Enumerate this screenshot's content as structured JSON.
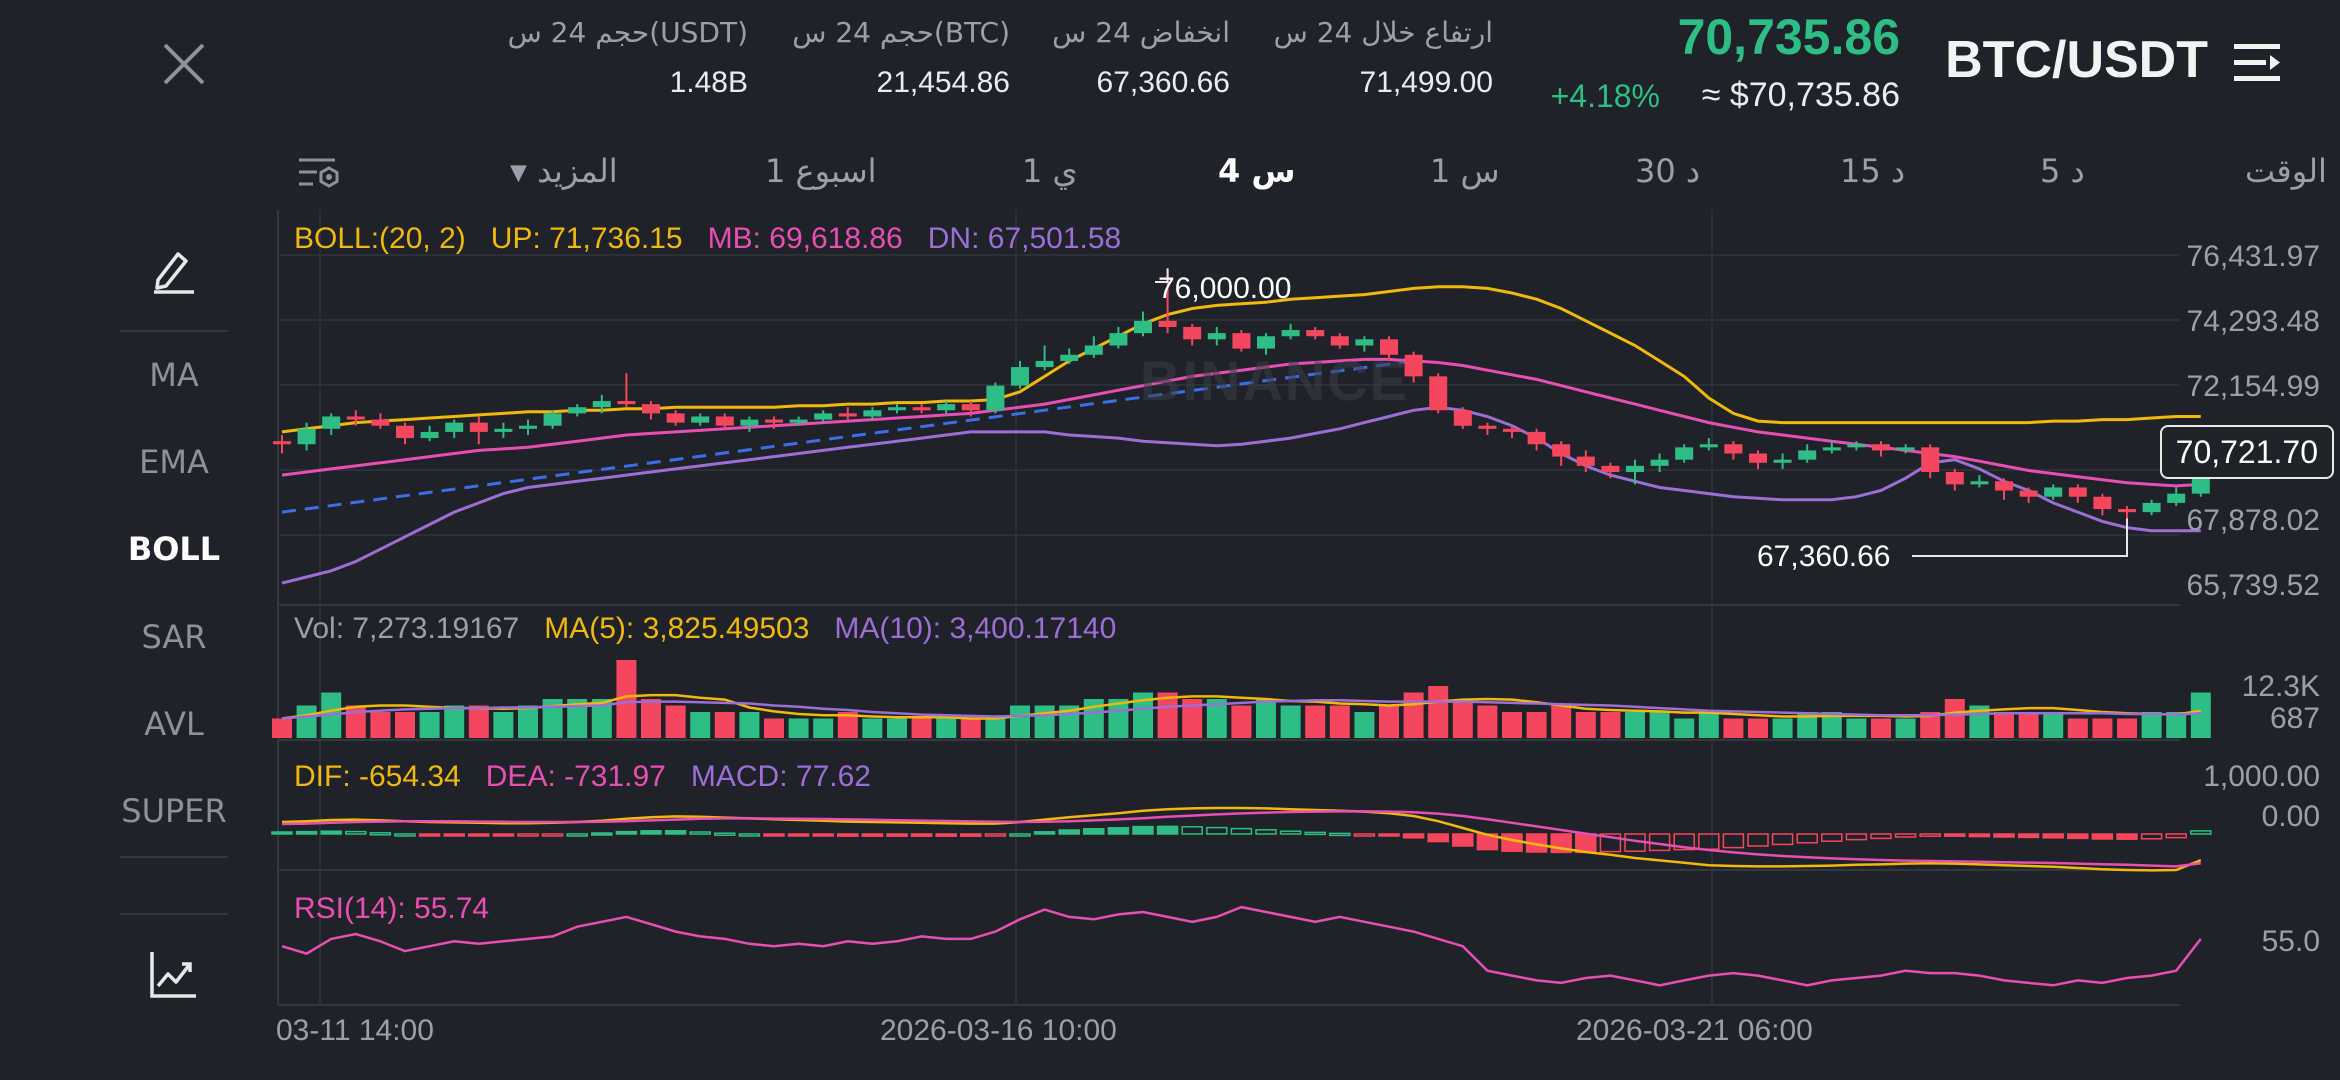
{
  "header": {
    "pair": "BTC/USDT",
    "last_price": "70,735.86",
    "usd_price": "≈ $70,735.86",
    "change_pct": "+4.18%",
    "stats": [
      {
        "label": "ارتفاع خلال 24 س",
        "value": "71,499.00"
      },
      {
        "label": "انخفاض 24 س",
        "value": "67,360.66"
      },
      {
        "label": "حجم 24 س(BTC)",
        "value": "21,454.86"
      },
      {
        "label": "حجم 24 س(USDT)",
        "value": "1.48B"
      }
    ]
  },
  "timeframes": {
    "label": "الوقت",
    "items": [
      "5 د",
      "15 د",
      "30 د",
      "1 س",
      "4 س",
      "1 ي",
      "1 اسبوع"
    ],
    "active": "4 س",
    "more": "المزيد"
  },
  "indicators": {
    "items": [
      "MA",
      "EMA",
      "BOLL",
      "SAR",
      "AVL",
      "SUPER"
    ],
    "active": "BOLL"
  },
  "icons": {
    "close": "close-icon",
    "menu": "menu-icon",
    "draw": "pencil-icon",
    "indicator_settings": "chart-settings-icon",
    "tf_settings": "layout-settings-icon"
  },
  "colors": {
    "up": "#2ebd85",
    "down": "#f6465d",
    "boll_up": "#f0b90b",
    "boll_mb": "#e84fb4",
    "boll_dn": "#9b6fd6",
    "trend": "#3b6fe8"
  },
  "watermark": "BINANCE",
  "chart_data": {
    "type": "candlestick",
    "legends": {
      "boll": {
        "name": "BOLL:(20, 2)",
        "up": "UP: 71,736.15",
        "mb": "MB: 69,618.86",
        "dn": "DN: 67,501.58"
      },
      "vol": {
        "vol": "Vol: 7,273.19167",
        "ma5": "MA(5): 3,825.49503",
        "ma10": "MA(10): 3,400.17140"
      },
      "macd": {
        "dif": "DIF: -654.34",
        "dea": "DEA: -731.97",
        "macd": "MACD: 77.62"
      },
      "rsi": {
        "rsi": "RSI(14): 55.74"
      }
    },
    "price_axis": [
      "76,431.97",
      "74,293.48",
      "72,154.99",
      "67,878.02",
      "65,739.52"
    ],
    "current_price": "70,721.70",
    "high_label": "76,000.00",
    "low_label": "67,360.66",
    "vol_axis": [
      "12.3K",
      "687"
    ],
    "macd_axis": [
      "1,000.00",
      "0.00"
    ],
    "rsi_axis": [
      "55.0"
    ],
    "dates": [
      "03-11 14:00",
      "2026-03-16 10:00",
      "2026-03-21 06:00"
    ],
    "price_range": [
      65739.52,
      76431.97
    ],
    "candles": [
      [
        70400,
        70300,
        70600,
        70000
      ],
      [
        70300,
        70800,
        71000,
        70100
      ],
      [
        70800,
        71200,
        71300,
        70600
      ],
      [
        71200,
        71100,
        71400,
        70900
      ],
      [
        71100,
        70900,
        71300,
        70800
      ],
      [
        70900,
        70500,
        71000,
        70300
      ],
      [
        70500,
        70700,
        70900,
        70400
      ],
      [
        70700,
        71000,
        71100,
        70500
      ],
      [
        71000,
        70700,
        71200,
        70300
      ],
      [
        70700,
        70800,
        71000,
        70500
      ],
      [
        70800,
        70900,
        71100,
        70600
      ],
      [
        70900,
        71300,
        71400,
        70800
      ],
      [
        71300,
        71500,
        71600,
        71200
      ],
      [
        71500,
        71700,
        71900,
        71300
      ],
      [
        71700,
        71600,
        72600,
        71500
      ],
      [
        71600,
        71300,
        71700,
        71100
      ],
      [
        71300,
        71000,
        71400,
        70900
      ],
      [
        71000,
        71200,
        71300,
        70900
      ],
      [
        71200,
        70900,
        71300,
        70800
      ],
      [
        70900,
        71100,
        71200,
        70700
      ],
      [
        71100,
        71000,
        71200,
        70800
      ],
      [
        71000,
        71100,
        71200,
        70900
      ],
      [
        71100,
        71300,
        71400,
        71000
      ],
      [
        71300,
        71200,
        71500,
        71100
      ],
      [
        71200,
        71400,
        71500,
        71100
      ],
      [
        71400,
        71500,
        71600,
        71300
      ],
      [
        71500,
        71400,
        71600,
        71300
      ],
      [
        71400,
        71600,
        71700,
        71300
      ],
      [
        71600,
        71400,
        71700,
        71200
      ],
      [
        71400,
        72200,
        72300,
        71300
      ],
      [
        72200,
        72800,
        73000,
        72100
      ],
      [
        72800,
        73000,
        73500,
        72700
      ],
      [
        73000,
        73200,
        73400,
        72900
      ],
      [
        73200,
        73500,
        73800,
        73100
      ],
      [
        73500,
        73900,
        74100,
        73400
      ],
      [
        73900,
        74300,
        74600,
        73800
      ],
      [
        74300,
        74100,
        76000,
        73900
      ],
      [
        74100,
        73700,
        74200,
        73500
      ],
      [
        73700,
        73900,
        74100,
        73500
      ],
      [
        73900,
        73400,
        74000,
        73300
      ],
      [
        73400,
        73800,
        73900,
        73200
      ],
      [
        73800,
        74000,
        74200,
        73700
      ],
      [
        74000,
        73800,
        74100,
        73700
      ],
      [
        73800,
        73500,
        73900,
        73400
      ],
      [
        73500,
        73700,
        73800,
        73300
      ],
      [
        73700,
        73200,
        73800,
        73000
      ],
      [
        73200,
        72500,
        73300,
        72300
      ],
      [
        72500,
        71400,
        72600,
        71300
      ],
      [
        71400,
        70900,
        71500,
        70800
      ],
      [
        70900,
        70800,
        71000,
        70600
      ],
      [
        70800,
        70700,
        70900,
        70500
      ],
      [
        70700,
        70300,
        70800,
        70100
      ],
      [
        70300,
        69900,
        70400,
        69600
      ],
      [
        69900,
        69600,
        70100,
        69400
      ],
      [
        69600,
        69400,
        69700,
        69200
      ],
      [
        69400,
        69600,
        69800,
        69000
      ],
      [
        69600,
        69800,
        70000,
        69400
      ],
      [
        69800,
        70200,
        70300,
        69700
      ],
      [
        70200,
        70300,
        70500,
        70100
      ],
      [
        70300,
        70000,
        70400,
        69800
      ],
      [
        70000,
        69700,
        70100,
        69500
      ],
      [
        69700,
        69800,
        70000,
        69500
      ],
      [
        69800,
        70100,
        70300,
        69700
      ],
      [
        70100,
        70200,
        70400,
        70000
      ],
      [
        70200,
        70300,
        70400,
        70100
      ],
      [
        70300,
        70100,
        70400,
        69900
      ],
      [
        70100,
        70200,
        70300,
        70000
      ],
      [
        70200,
        69400,
        70300,
        69200
      ],
      [
        69400,
        69000,
        69500,
        68800
      ],
      [
        69000,
        69100,
        69300,
        68900
      ],
      [
        69100,
        68800,
        69200,
        68500
      ],
      [
        68800,
        68600,
        68900,
        68400
      ],
      [
        68600,
        68900,
        69000,
        68500
      ],
      [
        68900,
        68600,
        69000,
        68400
      ],
      [
        68600,
        68200,
        68700,
        68000
      ],
      [
        68200,
        68100,
        68300,
        67900
      ],
      [
        68100,
        68400,
        68500,
        68000
      ],
      [
        68400,
        68700,
        68900,
        68300
      ],
      [
        68700,
        70300,
        70900,
        68600
      ]
    ],
    "boll_up": [
      70700,
      70800,
      70900,
      71000,
      71050,
      71100,
      71150,
      71200,
      71250,
      71300,
      71350,
      71350,
      71400,
      71400,
      71450,
      71450,
      71500,
      71500,
      71500,
      71500,
      71500,
      71550,
      71550,
      71600,
      71600,
      71650,
      71650,
      71700,
      71700,
      71750,
      72000,
      72500,
      73000,
      73400,
      73800,
      74200,
      74500,
      74700,
      74800,
      74850,
      74900,
      75000,
      75050,
      75100,
      75150,
      75250,
      75350,
      75400,
      75400,
      75350,
      75200,
      75000,
      74700,
      74300,
      73900,
      73500,
      73000,
      72500,
      71800,
      71300,
      71050,
      71000,
      71000,
      71000,
      71000,
      71000,
      71000,
      71000,
      71000,
      71000,
      71000,
      71000,
      71050,
      71050,
      71100,
      71100,
      71150,
      71200,
      71200
    ],
    "boll_mb": [
      69300,
      69400,
      69500,
      69600,
      69700,
      69800,
      69900,
      70000,
      70100,
      70150,
      70200,
      70300,
      70400,
      70500,
      70600,
      70650,
      70700,
      70750,
      70800,
      70850,
      70900,
      70950,
      71000,
      71050,
      71100,
      71150,
      71200,
      71250,
      71300,
      71400,
      71500,
      71600,
      71750,
      71900,
      72050,
      72200,
      72350,
      72500,
      72600,
      72700,
      72800,
      72900,
      72950,
      73000,
      73050,
      73050,
      73000,
      72950,
      72850,
      72700,
      72550,
      72400,
      72200,
      72000,
      71800,
      71600,
      71400,
      71200,
      71000,
      70850,
      70700,
      70600,
      70500,
      70400,
      70300,
      70200,
      70100,
      70000,
      69900,
      69750,
      69600,
      69450,
      69350,
      69250,
      69150,
      69050,
      69000,
      68950,
      69000
    ],
    "boll_dn": [
      65800,
      66000,
      66200,
      66500,
      66900,
      67300,
      67700,
      68100,
      68400,
      68700,
      68900,
      69000,
      69100,
      69200,
      69300,
      69400,
      69500,
      69600,
      69700,
      69800,
      69900,
      70000,
      70100,
      70200,
      70300,
      70400,
      70500,
      70600,
      70700,
      70700,
      70700,
      70700,
      70600,
      70550,
      70500,
      70400,
      70350,
      70300,
      70250,
      70300,
      70400,
      70500,
      70650,
      70800,
      71000,
      71200,
      71400,
      71500,
      71400,
      71200,
      70900,
      70500,
      70000,
      69600,
      69300,
      69100,
      68900,
      68800,
      68700,
      68600,
      68550,
      68500,
      68500,
      68500,
      68600,
      68800,
      69200,
      69700,
      69800,
      69500,
      69100,
      68800,
      68400,
      68100,
      67800,
      67600,
      67500,
      67500,
      67500
    ],
    "trend_start": [
      0,
      68100
    ],
    "trend_end": [
      46,
      73000
    ],
    "volumes": [
      3,
      5,
      7,
      5,
      4,
      4,
      4,
      5,
      5,
      4,
      5,
      6,
      6,
      6,
      12,
      6,
      5,
      4,
      4,
      4,
      3,
      3,
      3,
      4,
      3,
      3,
      3,
      3,
      3,
      3,
      5,
      5,
      5,
      6,
      6,
      7,
      7,
      6,
      6,
      5,
      6,
      5,
      5,
      5,
      4,
      5,
      7,
      8,
      6,
      5,
      4,
      4,
      5,
      4,
      4,
      4,
      4,
      3,
      4,
      3,
      3,
      3,
      4,
      4,
      3,
      3,
      3,
      4,
      6,
      5,
      4,
      4,
      4,
      3,
      3,
      3,
      4,
      4,
      7
    ],
    "vol_ma5": [
      3,
      3.5,
      4.2,
      4.8,
      5,
      5,
      4.8,
      4.6,
      4.6,
      4.5,
      4.6,
      4.9,
      5.2,
      5.4,
      6.4,
      6.6,
      6.6,
      6.2,
      5.9,
      4.7,
      4.1,
      3.7,
      3.5,
      3.5,
      3.3,
      3.2,
      3.2,
      3.2,
      3,
      3,
      3.4,
      3.8,
      4.2,
      4.8,
      5.3,
      5.8,
      6.2,
      6.4,
      6.4,
      6.2,
      6,
      5.7,
      5.6,
      5.3,
      5.2,
      5,
      5.2,
      5.6,
      5.9,
      6,
      5.9,
      5.5,
      5,
      4.5,
      4.3,
      4.2,
      4.1,
      3.9,
      3.9,
      3.7,
      3.5,
      3.3,
      3.3,
      3.4,
      3.4,
      3.4,
      3.3,
      3.4,
      3.9,
      4.2,
      4.4,
      4.6,
      4.6,
      4.3,
      4,
      3.8,
      3.7,
      3.6,
      4.2
    ],
    "vol_ma10": [
      3,
      3.3,
      3.6,
      4,
      4.2,
      4.4,
      4.5,
      4.6,
      4.6,
      4.7,
      4.7,
      4.8,
      4.9,
      5,
      5.5,
      5.6,
      5.6,
      5.5,
      5.4,
      5.3,
      5,
      4.8,
      4.5,
      4.3,
      4,
      3.8,
      3.6,
      3.5,
      3.4,
      3.3,
      3.4,
      3.5,
      3.7,
      3.9,
      4.2,
      4.5,
      4.8,
      5,
      5.2,
      5.4,
      5.6,
      5.7,
      5.8,
      5.8,
      5.7,
      5.6,
      5.6,
      5.6,
      5.6,
      5.5,
      5.4,
      5.3,
      5.2,
      5.1,
      5,
      4.8,
      4.6,
      4.4,
      4.2,
      4.1,
      4,
      3.9,
      3.8,
      3.7,
      3.6,
      3.5,
      3.5,
      3.5,
      3.6,
      3.7,
      3.8,
      3.8,
      3.8,
      3.8,
      3.8,
      3.7,
      3.7,
      3.6,
      3.8
    ],
    "macd_dif": [
      300,
      320,
      350,
      360,
      340,
      320,
      300,
      290,
      280,
      270,
      270,
      280,
      300,
      330,
      380,
      420,
      440,
      430,
      410,
      390,
      370,
      350,
      330,
      310,
      300,
      290,
      280,
      270,
      260,
      260,
      300,
      360,
      420,
      470,
      520,
      580,
      620,
      640,
      650,
      650,
      640,
      620,
      600,
      580,
      560,
      520,
      450,
      320,
      150,
      -20,
      -150,
      -260,
      -360,
      -450,
      -520,
      -600,
      -660,
      -720,
      -780,
      -800,
      -810,
      -810,
      -800,
      -790,
      -770,
      -760,
      -740,
      -730,
      -740,
      -760,
      -780,
      -800,
      -820,
      -850,
      -880,
      -900,
      -910,
      -900,
      -654
    ],
    "macd_dea": [
      250,
      260,
      280,
      300,
      310,
      320,
      320,
      320,
      310,
      305,
      300,
      300,
      300,
      305,
      320,
      340,
      360,
      380,
      390,
      390,
      385,
      380,
      375,
      365,
      355,
      345,
      335,
      325,
      315,
      305,
      300,
      305,
      320,
      340,
      365,
      395,
      430,
      460,
      490,
      515,
      535,
      550,
      560,
      565,
      565,
      560,
      545,
      510,
      450,
      370,
      280,
      190,
      100,
      10,
      -80,
      -170,
      -250,
      -330,
      -400,
      -460,
      -510,
      -550,
      -580,
      -610,
      -630,
      -650,
      -665,
      -675,
      -685,
      -695,
      -705,
      -715,
      -725,
      -740,
      -755,
      -770,
      -790,
      -810,
      -732
    ],
    "rsi": [
      52,
      49,
      55,
      57,
      54,
      50,
      52,
      54,
      53,
      54,
      55,
      56,
      60,
      62,
      64,
      61,
      58,
      56,
      55,
      53,
      52,
      53,
      52,
      54,
      53,
      54,
      56,
      55,
      55,
      58,
      63,
      67,
      64,
      63,
      65,
      66,
      64,
      62,
      64,
      68,
      66,
      64,
      62,
      64,
      62,
      60,
      58,
      55,
      52,
      42,
      40,
      38,
      37,
      39,
      40,
      38,
      36,
      38,
      40,
      41,
      40,
      38,
      36,
      38,
      39,
      40,
      42,
      41,
      41,
      40,
      38,
      37,
      36,
      38,
      37,
      39,
      40,
      42,
      55
    ]
  }
}
